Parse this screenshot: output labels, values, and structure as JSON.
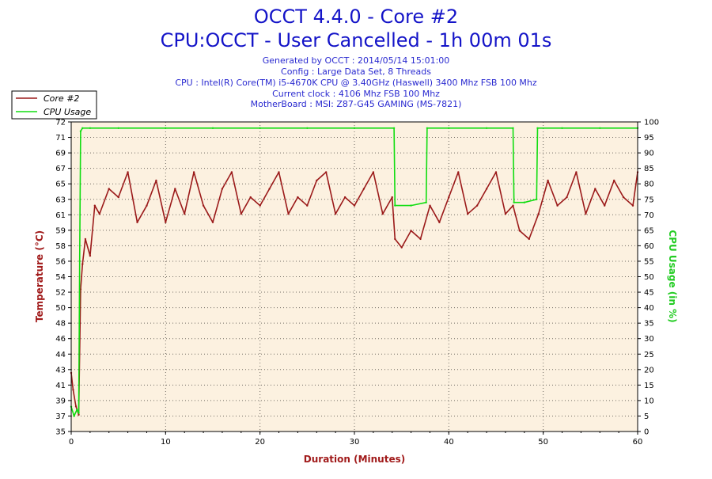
{
  "chart_data": {
    "type": "line",
    "title": "OCCT 4.4.0 - Core #2",
    "subtitle": "CPU:OCCT - User Cancelled - 1h 00m 01s",
    "info_lines": [
      "Generated by OCCT : 2014/05/14 15:01:00",
      "Config : Large Data Set, 8 Threads",
      "CPU : Intel(R) Core(TM) i5-4670K CPU @ 3.40GHz (Haswell) 3400 Mhz FSB 100 Mhz",
      "Current clock : 4106 Mhz FSB 100 Mhz",
      "MotherBoard : MSI: Z87-G45 GAMING (MS-7821)"
    ],
    "xlabel": "Duration (Minutes)",
    "ylabel_left": "Temperature (°C)",
    "ylabel_right": "CPU Usage (in %)",
    "xlim": [
      0,
      60
    ],
    "ylim_left": [
      35,
      72
    ],
    "ylim_right": [
      0,
      100
    ],
    "x_ticks": [
      "0",
      "10",
      "20",
      "30",
      "40",
      "50",
      "60"
    ],
    "left_ticks": [
      "35",
      "37",
      "39",
      "41",
      "43",
      "44",
      "46",
      "48",
      "50",
      "52",
      "54",
      "56",
      "58",
      "59",
      "61",
      "63",
      "65",
      "67",
      "69",
      "71",
      "72"
    ],
    "right_ticks": [
      "0",
      "5",
      "10",
      "15",
      "20",
      "25",
      "30",
      "35",
      "40",
      "45",
      "50",
      "55",
      "60",
      "65",
      "70",
      "75",
      "80",
      "85",
      "90",
      "95",
      "100"
    ],
    "grid": true,
    "legend_position": "top-left",
    "series": [
      {
        "name": "Core #2",
        "axis": "left",
        "color": "#9b1a1a",
        "x": [
          0,
          0.2,
          0.5,
          0.8,
          1.0,
          1.2,
          1.5,
          2.0,
          2.5,
          3.0,
          4.0,
          5.0,
          6.0,
          7.0,
          8.0,
          9.0,
          10.0,
          11.0,
          12.0,
          13.0,
          14.0,
          15.0,
          16.0,
          17.0,
          18.0,
          19.0,
          20.0,
          21.0,
          22.0,
          23.0,
          24.0,
          25.0,
          26.0,
          27.0,
          28.0,
          29.0,
          30.0,
          31.0,
          32.0,
          33.0,
          34.0,
          34.3,
          35.0,
          36.0,
          37.0,
          38.0,
          39.0,
          40.0,
          41.0,
          42.0,
          43.0,
          44.0,
          45.0,
          46.0,
          46.8,
          47.5,
          48.5,
          49.5,
          50.5,
          51.5,
          52.5,
          53.5,
          54.5,
          55.5,
          56.5,
          57.5,
          58.5,
          59.5,
          60.0
        ],
        "values": [
          42,
          40,
          38,
          37,
          52,
          55,
          58,
          56,
          62,
          61,
          64,
          63,
          66,
          60,
          62,
          65,
          60,
          64,
          61,
          66,
          62,
          60,
          64,
          66,
          61,
          63,
          62,
          64,
          66,
          61,
          63,
          62,
          65,
          66,
          61,
          63,
          62,
          64,
          66,
          61,
          63,
          58,
          57,
          59,
          58,
          62,
          60,
          63,
          66,
          61,
          62,
          64,
          66,
          61,
          62,
          59,
          58,
          61,
          65,
          62,
          63,
          66,
          61,
          64,
          62,
          65,
          63,
          62,
          66
        ]
      },
      {
        "name": "CPU Usage",
        "axis": "right",
        "color": "#11dd11",
        "x": [
          0,
          0.3,
          0.6,
          0.8,
          0.9,
          1.0,
          1.2,
          2.0,
          5.0,
          10.0,
          15.0,
          20.0,
          25.0,
          30.0,
          34.2,
          34.3,
          36.0,
          37.6,
          37.7,
          40.0,
          44.0,
          46.8,
          46.9,
          48.0,
          49.3,
          49.4,
          52.0,
          56.0,
          60.0
        ],
        "values": [
          8,
          5,
          7,
          6,
          55,
          97,
          98,
          98,
          98,
          98,
          98,
          98,
          98,
          98,
          98,
          73,
          73,
          74,
          98,
          98,
          98,
          98,
          74,
          74,
          75,
          98,
          98,
          98,
          98
        ]
      }
    ]
  },
  "legend": [
    {
      "label": "Core #2",
      "color": "#9b1a1a"
    },
    {
      "label": "CPU Usage",
      "color": "#11dd11"
    }
  ]
}
